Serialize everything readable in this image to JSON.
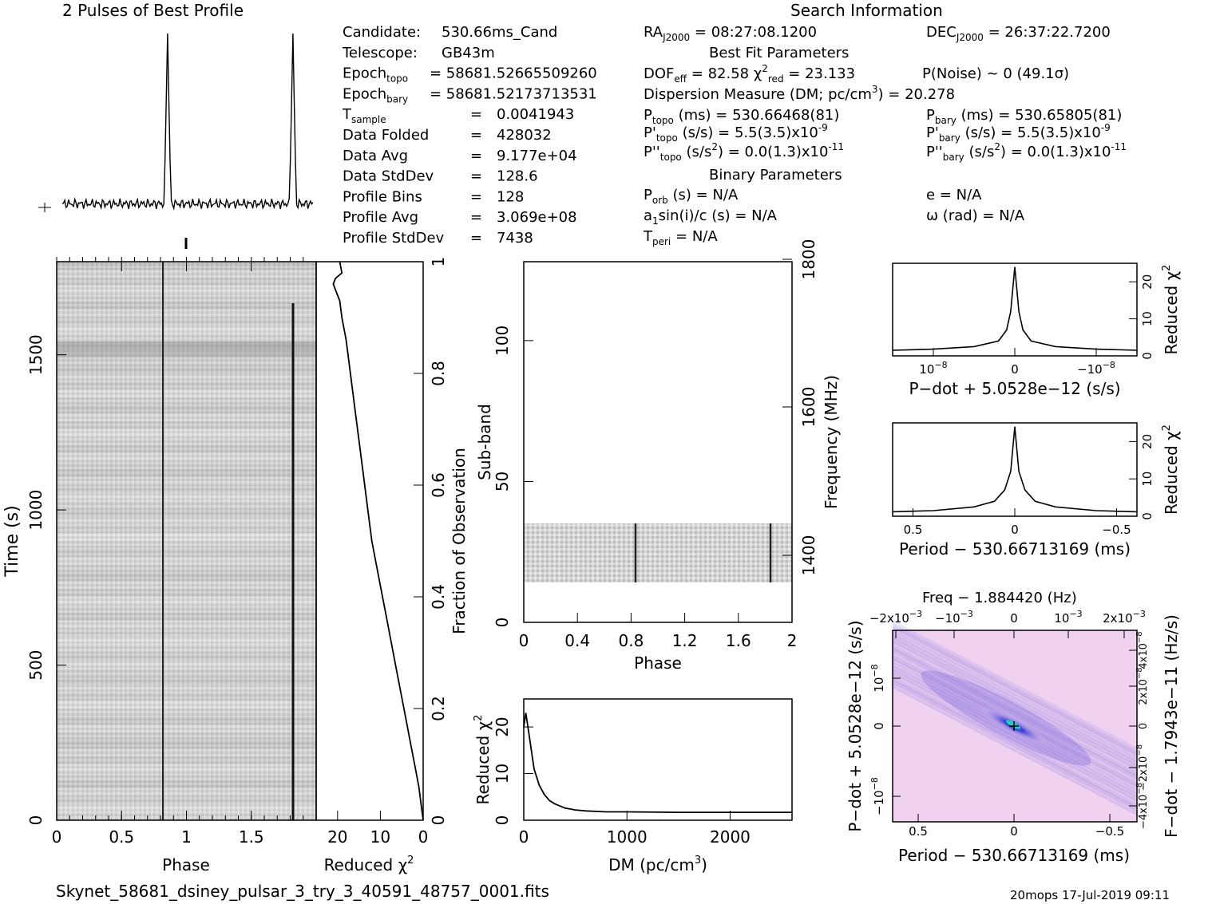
{
  "header": {
    "profile_title": "2 Pulses of Best Profile",
    "search_title": "Search Information",
    "best_fit_title": "Best Fit Parameters",
    "binary_title": "Binary Parameters",
    "filename": "Skynet_58681_dsiney_pulsar_3_try_3_40591_48757_0001.fits",
    "footer_stamp": "20mops  17-Jul-2019 09:11"
  },
  "info_left": [
    {
      "label": "Candidate:",
      "value": "530.66ms_Cand"
    },
    {
      "label": "Telescope:",
      "value": "GB43m"
    },
    {
      "label": "Epoch",
      "sub": "topo",
      "value": "= 58681.52665509260"
    },
    {
      "label": "Epoch",
      "sub": "bary",
      "value": "= 58681.52173713531"
    },
    {
      "label": "T",
      "sub": "sample",
      "value": "0.0041943"
    },
    {
      "label": "Data Folded",
      "value": "428032"
    },
    {
      "label": "Data Avg",
      "value": "9.177e+04"
    },
    {
      "label": "Data StdDev",
      "value": "128.6"
    },
    {
      "label": "Profile Bins",
      "value": "128"
    },
    {
      "label": "Profile Avg",
      "value": "3.069e+08"
    },
    {
      "label": "Profile StdDev",
      "value": "7438"
    }
  ],
  "info_mid": {
    "ra": "= 08:27:08.1200",
    "dof": "= 82.58",
    "chi2": "= 23.133",
    "dm_line": "Dispersion Measure (DM; pc/cm",
    "dm_value": ") = 20.278",
    "ptopo": "(ms) =  530.66468(81)",
    "pdtopo": "(s/s) =  5.5(3.5)x10",
    "pdtopo_exp": "-9",
    "pddtopo": ") = 0.0(1.3)x10",
    "pddtopo_exp": "-11",
    "porb": "(s) = N/A",
    "a1": "sin(i)/c (s) = N/A",
    "tperi": "= N/A"
  },
  "info_right": {
    "dec": "= 26:37:22.7200",
    "pnoise": "P(Noise) ~ 0    (49.1σ)",
    "pbary": "(ms) =  530.65805(81)",
    "pdbary": "(s/s) =  5.5(3.5)x10",
    "pdbary_exp": "-9",
    "pddbary": ") = 0.0(1.3)x10",
    "pddbary_exp": "-11",
    "ecc": "e = N/A",
    "omega": "ω (rad) = N/A"
  },
  "colors": {
    "ink": "#000000",
    "grey_bg": "#c8c8c8",
    "pdot_bg": "#f0d2f0",
    "pdot_blob": "#3a3ad8",
    "pdot_peak": "#20d0c0"
  },
  "chart_data": [
    {
      "type": "line",
      "name": "profile",
      "xlim": [
        0,
        2
      ],
      "x": [
        0,
        0.82,
        0.84,
        0.86,
        1.0,
        1.82,
        1.84,
        1.86,
        2.0
      ],
      "y": [
        0.04,
        0.05,
        1.0,
        0.05,
        0.04,
        0.05,
        1.0,
        0.05,
        0.04
      ]
    },
    {
      "type": "heatmap",
      "name": "time-phase",
      "xlabel": "Phase",
      "ylabel": "Time (s)",
      "xlim": [
        0,
        2
      ],
      "ylim": [
        0,
        1800
      ],
      "xticks": [
        "0",
        "0.5",
        "1",
        "1.5"
      ],
      "yticks": [
        "0",
        "500",
        "1000",
        "1500"
      ],
      "pulse_phases": [
        0.83,
        1.83
      ]
    },
    {
      "type": "line",
      "name": "reduced-chi2-vs-time",
      "xlabel": "Reduced χ",
      "ylabel": "Fraction of Observation",
      "xticks": [
        "20",
        "10",
        "0"
      ],
      "yticks": [
        "0",
        "0.2",
        "0.4",
        "0.6",
        "0.8",
        "1"
      ],
      "xlim": [
        25,
        0
      ],
      "ylim": [
        0,
        1
      ],
      "x": [
        0,
        0.5,
        1,
        2,
        3,
        4.5,
        6,
        7.5,
        9,
        10.5,
        12,
        13,
        14,
        15,
        16,
        17,
        18,
        19,
        19.5,
        20,
        21,
        20.5,
        19,
        19.5
      ],
      "y": [
        0,
        0.03,
        0.06,
        0.1,
        0.14,
        0.2,
        0.26,
        0.32,
        0.38,
        0.44,
        0.5,
        0.56,
        0.62,
        0.68,
        0.74,
        0.8,
        0.86,
        0.9,
        0.93,
        0.94,
        0.96,
        0.97,
        0.98,
        1.0
      ]
    },
    {
      "type": "heatmap",
      "name": "subband-phase",
      "xlabel": "Phase",
      "ylabel": "Sub-band",
      "y2label": "Frequency (MHz)",
      "xticks": [
        "0",
        "0.4",
        "0.8",
        "1.2",
        "1.6",
        "2"
      ],
      "yticks": [
        "0",
        "50",
        "100"
      ],
      "y2ticks": [
        "1400",
        "1600",
        "1800"
      ],
      "xlim": [
        0,
        2
      ],
      "ylim": [
        0,
        128
      ],
      "data_band": [
        14,
        35
      ],
      "pulse_phases": [
        0.83,
        1.83
      ]
    },
    {
      "type": "line",
      "name": "chi2-vs-dm",
      "xlabel": "DM (pc/cm",
      "xlabel_sup": "3",
      "xlabel_end": ")",
      "ylabel": "Reduced χ",
      "xticks": [
        "0",
        "1000",
        "2000"
      ],
      "yticks": [
        "0",
        "10",
        "20"
      ],
      "xlim": [
        0,
        2600
      ],
      "ylim": [
        0,
        26
      ],
      "x": [
        0,
        20,
        60,
        100,
        150,
        200,
        250,
        300,
        400,
        500,
        600,
        800,
        1000,
        1500,
        2000,
        2600
      ],
      "y": [
        20,
        23,
        17,
        11,
        7.5,
        5.5,
        4.2,
        3.5,
        2.6,
        2.2,
        2.0,
        1.8,
        1.8,
        1.7,
        1.7,
        1.7
      ]
    },
    {
      "type": "line",
      "name": "chi2-vs-pdot",
      "xlabel": "P−dot + 5.0528e−12 (s/s)",
      "ylabel": "Reduced χ",
      "xticks": [
        "10",
        "0",
        "−10"
      ],
      "xtick_exp": "−8",
      "yticks": [
        "0",
        "10",
        "20"
      ],
      "xlim": [
        1.5e-08,
        -1.5e-08
      ],
      "ylim": [
        0,
        25
      ],
      "x": [
        1.5e-08,
        1e-08,
        5e-09,
        2e-09,
        1e-09,
        5e-10,
        0,
        -5e-10,
        -1e-09,
        -2e-09,
        -5e-09,
        -1e-08,
        -1.5e-08
      ],
      "y": [
        1.5,
        1.8,
        2.5,
        4,
        7,
        12,
        24,
        12,
        7,
        4,
        2.5,
        1.8,
        1.5
      ]
    },
    {
      "type": "line",
      "name": "chi2-vs-period",
      "xlabel": "Period − 530.66713169 (ms)",
      "ylabel": "Reduced χ",
      "xticks": [
        "0.5",
        "0",
        "−0.5"
      ],
      "yticks": [
        "0",
        "10",
        "20"
      ],
      "xlim": [
        0.6,
        -0.6
      ],
      "ylim": [
        0,
        25
      ],
      "x": [
        0.6,
        0.4,
        0.2,
        0.1,
        0.05,
        0.02,
        0,
        -0.02,
        -0.05,
        -0.1,
        -0.2,
        -0.4,
        -0.6
      ],
      "y": [
        1.2,
        1.5,
        2.5,
        4,
        7,
        12,
        24,
        12,
        7,
        4,
        2.5,
        1.5,
        1.2
      ]
    },
    {
      "type": "heatmap",
      "name": "period-pdot",
      "title": "Freq − 1.884420 (Hz)",
      "xlabel": "Period − 530.66713169 (ms)",
      "ylabel": "P−dot + 5.0528e−12 (s/s)",
      "y2label": "F−dot − 1.7943e−11 (Hz/s)",
      "xticks": [
        "0.5",
        "0",
        "−0.5"
      ],
      "yticks": [
        "10",
        "0",
        "−10"
      ],
      "ytick_exp": "−8",
      "top_ticks": [
        "−2x10",
        "−10",
        "0",
        "10",
        "2x10"
      ],
      "top_tick_exp": "−3",
      "right_ticks": [
        "−4x10",
        "−2x10",
        "0",
        "2x10",
        "4x10"
      ],
      "right_tick_exp": "−8"
    }
  ]
}
